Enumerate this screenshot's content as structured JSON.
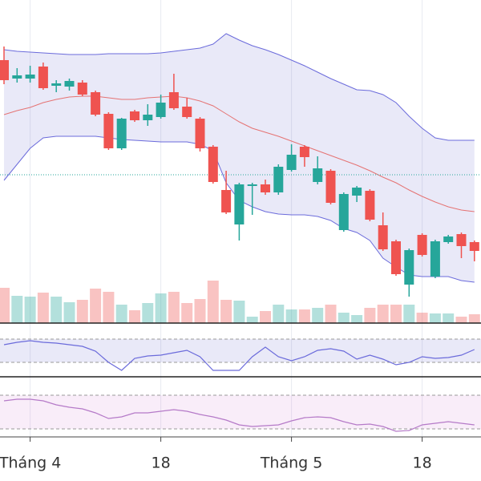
{
  "chart_data": {
    "type": "candlestick",
    "categories": [
      null,
      null,
      "Tháng 4",
      null,
      null,
      null,
      null,
      null,
      null,
      null,
      null,
      null,
      "18",
      null,
      null,
      null,
      null,
      null,
      null,
      null,
      null,
      null,
      "Tháng 5",
      null,
      null,
      null,
      null,
      null,
      null,
      null,
      null,
      null,
      "18",
      null,
      null,
      null,
      null
    ],
    "open": [
      328,
      305,
      305,
      320,
      296,
      295,
      300,
      288,
      261,
      218,
      264,
      253,
      257,
      288,
      270,
      255,
      220,
      166,
      123,
      171,
      173,
      163,
      191,
      220,
      176,
      190,
      116,
      159,
      165,
      122,
      102,
      48,
      110,
      58,
      101,
      111,
      101
    ],
    "high": [
      345,
      318,
      321,
      325,
      303,
      305,
      303,
      290,
      263,
      256,
      266,
      273,
      285,
      311,
      281,
      257,
      222,
      190,
      175,
      175,
      179,
      198,
      223,
      222,
      208,
      192,
      163,
      171,
      167,
      138,
      104,
      93,
      112,
      104,
      110,
      113,
      103
    ],
    "low": [
      298,
      300,
      300,
      291,
      288,
      290,
      283,
      258,
      216,
      216,
      251,
      246,
      255,
      266,
      255,
      214,
      174,
      136,
      103,
      135,
      160,
      160,
      189,
      195,
      173,
      148,
      114,
      151,
      127,
      90,
      59,
      33,
      83,
      56,
      99,
      81,
      77
    ],
    "close": [
      303,
      309,
      310,
      293,
      299,
      302,
      285,
      260,
      218,
      255,
      253,
      260,
      275,
      268,
      257,
      218,
      176,
      138,
      173,
      173,
      163,
      195,
      210,
      207,
      193,
      150,
      161,
      169,
      129,
      92,
      61,
      91,
      85,
      102,
      108,
      96,
      90
    ],
    "up_color": "#26a69a",
    "down_color": "#ef5350",
    "ylim": [
      0,
      403
    ],
    "bands": [
      {
        "color": "#6b6bdb",
        "values": [
          341,
          339,
          338,
          337,
          336,
          335,
          335,
          335,
          336,
          336,
          336,
          336,
          337,
          339,
          341,
          343,
          348,
          361,
          353,
          346,
          341,
          335,
          328,
          321,
          313,
          305,
          298,
          291,
          290,
          285,
          275,
          258,
          243,
          231,
          228,
          228,
          228
        ]
      },
      {
        "color": "#e57373",
        "values": [
          260,
          265,
          269,
          275,
          279,
          282,
          283,
          283,
          281,
          279,
          279,
          281,
          282,
          283,
          281,
          277,
          271,
          261,
          251,
          243,
          238,
          233,
          227,
          221,
          215,
          209,
          203,
          197,
          190,
          182,
          175,
          166,
          158,
          151,
          145,
          141,
          139
        ]
      },
      {
        "color": "#6b6bdb",
        "values": [
          178,
          198,
          218,
          231,
          233,
          233,
          233,
          233,
          231,
          229,
          228,
          227,
          226,
          226,
          226,
          223,
          215,
          175,
          153,
          145,
          139,
          136,
          135,
          135,
          133,
          128,
          118,
          113,
          103,
          81,
          70,
          60,
          58,
          58,
          58,
          53,
          51
        ]
      }
    ],
    "band_fill": "rgba(120,120,210,0.16)",
    "price_line": 185,
    "volume": {
      "axis": "y2",
      "values": [
        44,
        34,
        33,
        38,
        33,
        26,
        29,
        43,
        39,
        23,
        16,
        25,
        37,
        39,
        25,
        30,
        53,
        29,
        28,
        8,
        15,
        23,
        17,
        17,
        19,
        23,
        13,
        10,
        19,
        23,
        23,
        23,
        13,
        12,
        12,
        8,
        11
      ]
    },
    "y2lim": [
      0,
      403
    ],
    "indicators": [
      {
        "color": "#6b6bdb",
        "fill": "rgba(120,120,210,0.16)",
        "ylim": [
          0,
          67
        ],
        "band": [
          18,
          47
        ],
        "values": [
          40,
          43,
          45,
          43,
          42,
          40,
          38,
          32,
          18,
          8,
          23,
          26,
          27,
          30,
          33,
          25,
          8,
          8,
          8,
          25,
          37,
          25,
          20,
          25,
          33,
          35,
          32,
          22,
          27,
          22,
          15,
          18,
          25,
          23,
          24,
          27,
          34
        ]
      },
      {
        "color": "#b57ac8",
        "fill": "rgba(215,140,215,0.16)",
        "ylim": [
          0,
          75
        ],
        "band": [
          10,
          52
        ],
        "values": [
          45,
          47,
          47,
          45,
          40,
          37,
          35,
          30,
          23,
          25,
          30,
          30,
          32,
          34,
          32,
          28,
          25,
          21,
          15,
          13,
          14,
          15,
          20,
          24,
          25,
          24,
          19,
          15,
          16,
          13,
          7,
          8,
          15,
          17,
          19,
          17,
          15
        ]
      }
    ]
  }
}
